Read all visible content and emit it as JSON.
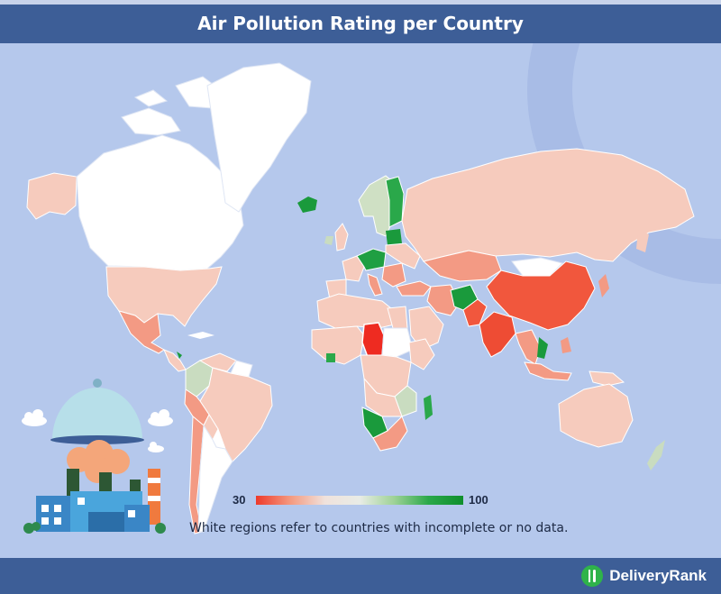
{
  "title": "Air Pollution Rating per Country",
  "legend": {
    "min": "30",
    "max": "100",
    "scale_colors": [
      "#ee3a2b",
      "#f49a80",
      "#f0e2dc",
      "#e9ece6",
      "#9ed296",
      "#0f8f2c"
    ]
  },
  "note": "White regions refer to countries with incomplete or no data.",
  "brand": "DeliveryRank",
  "colors": {
    "header": "#3d5e97",
    "background": "#b5c8ec",
    "no_data": "#ffffff",
    "low": "#ee3a2b",
    "mid": "#f5c2b2",
    "high": "#0f8f2c"
  }
}
